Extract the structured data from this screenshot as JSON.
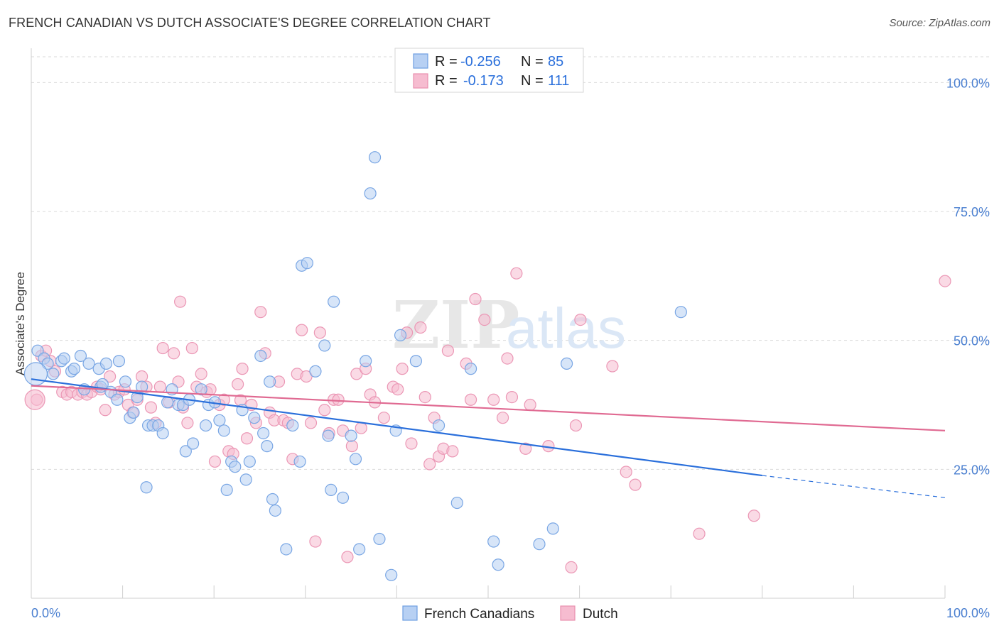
{
  "title": "FRENCH CANADIAN VS DUTCH ASSOCIATE'S DEGREE CORRELATION CHART",
  "source": "Source: ZipAtlas.com",
  "watermark": {
    "zip": "ZIP",
    "atlas": "atlas"
  },
  "legend": {
    "rows": [
      {
        "r_label": "R =",
        "r_value": "-0.256",
        "n_label": "N =",
        "n_value": "85"
      },
      {
        "r_label": "R =",
        "r_value": "-0.173",
        "n_label": "N =",
        "n_value": "111"
      }
    ]
  },
  "colors": {
    "blue": "#2a6fdb",
    "blue_fill": "#b7d0f3",
    "pink": "#e06a92",
    "pink_fill": "#f6bcd0",
    "grid": "#d9d9d9"
  },
  "chart_data": {
    "type": "scatter",
    "title": "FRENCH CANADIAN VS DUTCH ASSOCIATE'S DEGREE CORRELATION CHART",
    "xlabel": "",
    "ylabel": "Associate's Degree",
    "xlim": [
      0,
      100
    ],
    "ylim": [
      0,
      105
    ],
    "x_tick_labels": [
      "0.0%",
      "100.0%"
    ],
    "y_ticks": [
      25,
      50,
      75,
      100
    ],
    "y_tick_labels": [
      "25.0%",
      "50.0%",
      "75.0%",
      "100.0%"
    ],
    "series": [
      {
        "name": "French Canadians",
        "r": -0.256,
        "n": 85,
        "trend": {
          "x0": 0,
          "y0": 42.5,
          "x1": 80,
          "y1": 23.8,
          "dash_to_x": 100,
          "dash_to_y": 19.5
        },
        "points": [
          [
            0.7,
            48
          ],
          [
            1.4,
            46.5
          ],
          [
            1.8,
            45.5
          ],
          [
            2.4,
            43.5
          ],
          [
            3.3,
            46
          ],
          [
            3.6,
            46.5
          ],
          [
            4.4,
            44
          ],
          [
            4.7,
            44.5
          ],
          [
            5.4,
            47
          ],
          [
            6.3,
            45.5
          ],
          [
            7.4,
            44.5
          ],
          [
            7.6,
            41
          ],
          [
            7.8,
            41.5
          ],
          [
            8.2,
            45.5
          ],
          [
            8.7,
            40
          ],
          [
            9.4,
            38.5
          ],
          [
            9.6,
            46
          ],
          [
            10.3,
            42
          ],
          [
            10.8,
            35
          ],
          [
            11.2,
            36
          ],
          [
            11.6,
            39
          ],
          [
            12.1,
            41
          ],
          [
            12.8,
            33.5
          ],
          [
            13.3,
            33.5
          ],
          [
            13.9,
            33.5
          ],
          [
            14.4,
            32
          ],
          [
            14.9,
            38
          ],
          [
            15.4,
            40.5
          ],
          [
            16.1,
            37.5
          ],
          [
            16.6,
            37.5
          ],
          [
            16.9,
            28.5
          ],
          [
            17.3,
            38.5
          ],
          [
            17.7,
            30
          ],
          [
            18.6,
            40.5
          ],
          [
            19.1,
            33.5
          ],
          [
            19.4,
            37.5
          ],
          [
            20.1,
            38
          ],
          [
            20.6,
            34.5
          ],
          [
            21.1,
            32.5
          ],
          [
            21.4,
            21
          ],
          [
            21.9,
            26.5
          ],
          [
            22.3,
            25.5
          ],
          [
            23.1,
            36.5
          ],
          [
            23.5,
            23
          ],
          [
            23.9,
            26.5
          ],
          [
            24.4,
            35
          ],
          [
            25.1,
            47
          ],
          [
            25.4,
            32
          ],
          [
            25.8,
            29.5
          ],
          [
            26.1,
            42
          ],
          [
            26.7,
            17
          ],
          [
            27.9,
            9.5
          ],
          [
            28.6,
            33.5
          ],
          [
            29.4,
            26.5
          ],
          [
            29.6,
            64.5
          ],
          [
            30.2,
            65
          ],
          [
            31.1,
            44
          ],
          [
            32.1,
            49
          ],
          [
            32.5,
            31.5
          ],
          [
            32.8,
            21
          ],
          [
            33.1,
            57.5
          ],
          [
            34.1,
            19.5
          ],
          [
            35.0,
            31.5
          ],
          [
            35.5,
            27
          ],
          [
            35.9,
            9.5
          ],
          [
            36.6,
            46
          ],
          [
            37.1,
            78.5
          ],
          [
            37.6,
            85.5
          ],
          [
            38.1,
            11.5
          ],
          [
            39.4,
            4.5
          ],
          [
            39.9,
            32.5
          ],
          [
            40.4,
            51
          ],
          [
            42.1,
            46
          ],
          [
            44.6,
            33.5
          ],
          [
            46.6,
            18.5
          ],
          [
            48.1,
            44.5
          ],
          [
            50.6,
            11
          ],
          [
            51.1,
            6.5
          ],
          [
            55.6,
            10.5
          ],
          [
            57.1,
            13.5
          ],
          [
            58.6,
            45.5
          ],
          [
            71.1,
            55.5
          ],
          [
            26.4,
            19.2
          ],
          [
            12.6,
            21.5
          ],
          [
            5.8,
            40.5
          ]
        ]
      },
      {
        "name": "Dutch",
        "r": -0.173,
        "n": 111,
        "trend": {
          "x0": 0,
          "y0": 41.2,
          "x1": 100,
          "y1": 32.5
        },
        "points": [
          [
            0.6,
            38.5
          ],
          [
            1.1,
            47
          ],
          [
            1.6,
            48
          ],
          [
            2.1,
            46
          ],
          [
            2.6,
            44
          ],
          [
            3.4,
            40
          ],
          [
            3.9,
            39.5
          ],
          [
            4.4,
            40
          ],
          [
            5.1,
            39.5
          ],
          [
            5.6,
            40
          ],
          [
            6.1,
            39.5
          ],
          [
            6.6,
            40
          ],
          [
            7.2,
            41
          ],
          [
            7.6,
            40.5
          ],
          [
            8.1,
            36.5
          ],
          [
            8.6,
            43
          ],
          [
            9.1,
            39.5
          ],
          [
            9.6,
            40
          ],
          [
            10.2,
            40.5
          ],
          [
            10.6,
            37.5
          ],
          [
            11.1,
            36
          ],
          [
            11.6,
            38.5
          ],
          [
            12.1,
            43
          ],
          [
            12.6,
            41
          ],
          [
            13.1,
            37
          ],
          [
            13.6,
            34
          ],
          [
            14.1,
            41
          ],
          [
            14.4,
            48.5
          ],
          [
            15.1,
            38
          ],
          [
            15.6,
            47.5
          ],
          [
            16.1,
            42
          ],
          [
            16.3,
            57.5
          ],
          [
            16.6,
            37
          ],
          [
            17.1,
            34
          ],
          [
            17.6,
            48.5
          ],
          [
            18.1,
            41
          ],
          [
            18.6,
            43.5
          ],
          [
            19.2,
            40
          ],
          [
            19.6,
            40.5
          ],
          [
            20.1,
            26.5
          ],
          [
            20.6,
            37.5
          ],
          [
            21.1,
            38.5
          ],
          [
            21.6,
            28.5
          ],
          [
            22.1,
            28
          ],
          [
            22.6,
            41.5
          ],
          [
            23.1,
            44.5
          ],
          [
            23.6,
            31
          ],
          [
            24.1,
            37.5
          ],
          [
            24.6,
            34
          ],
          [
            25.1,
            55.5
          ],
          [
            25.6,
            47.5
          ],
          [
            26.1,
            36
          ],
          [
            26.6,
            34.5
          ],
          [
            27.1,
            42
          ],
          [
            27.6,
            34.5
          ],
          [
            28.1,
            34
          ],
          [
            28.6,
            27
          ],
          [
            29.1,
            43.5
          ],
          [
            29.6,
            52
          ],
          [
            30.1,
            43
          ],
          [
            30.6,
            34
          ],
          [
            31.1,
            11
          ],
          [
            31.6,
            51.5
          ],
          [
            32.1,
            36.5
          ],
          [
            32.6,
            32
          ],
          [
            33.1,
            38.5
          ],
          [
            33.6,
            38.5
          ],
          [
            34.1,
            32.5
          ],
          [
            34.6,
            8
          ],
          [
            35.1,
            29.5
          ],
          [
            35.6,
            43.5
          ],
          [
            36.1,
            33
          ],
          [
            36.6,
            44.5
          ],
          [
            37.1,
            39.5
          ],
          [
            37.6,
            38
          ],
          [
            38.6,
            35
          ],
          [
            39.6,
            41
          ],
          [
            40.1,
            40.5
          ],
          [
            40.6,
            44.5
          ],
          [
            41.1,
            51.5
          ],
          [
            41.6,
            30
          ],
          [
            42.6,
            52.5
          ],
          [
            43.1,
            39
          ],
          [
            43.6,
            26
          ],
          [
            44.1,
            35
          ],
          [
            44.6,
            27.5
          ],
          [
            45.1,
            29
          ],
          [
            45.6,
            48
          ],
          [
            46.1,
            28.5
          ],
          [
            47.6,
            45.5
          ],
          [
            48.1,
            38.5
          ],
          [
            48.6,
            58
          ],
          [
            49.6,
            54
          ],
          [
            50.6,
            38.5
          ],
          [
            51.6,
            35
          ],
          [
            52.1,
            46.5
          ],
          [
            52.6,
            39
          ],
          [
            53.1,
            63
          ],
          [
            54.1,
            29
          ],
          [
            54.6,
            37.5
          ],
          [
            56.6,
            29.5
          ],
          [
            59.1,
            6
          ],
          [
            59.6,
            33.5
          ],
          [
            60.1,
            54
          ],
          [
            63.6,
            45
          ],
          [
            65.1,
            24.5
          ],
          [
            66.1,
            22
          ],
          [
            73.1,
            12.5
          ],
          [
            79.1,
            16
          ],
          [
            100.0,
            61.5
          ],
          [
            22.9,
            38.4
          ]
        ]
      }
    ]
  },
  "bottom_legend": [
    "French Canadians",
    "Dutch"
  ]
}
